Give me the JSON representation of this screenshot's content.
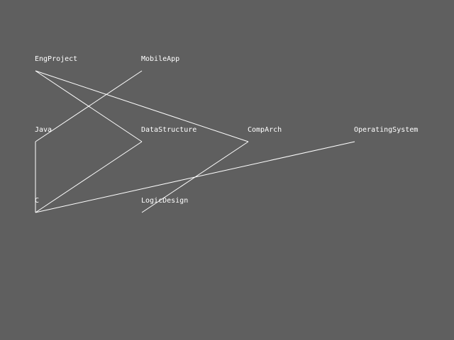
{
  "diagram": {
    "background": "#5f5f5f",
    "line_color": "#ffffff",
    "nodes": {
      "EngProject": {
        "label": "EngProject"
      },
      "MobileApp": {
        "label": "MobileApp"
      },
      "Java": {
        "label": "Java"
      },
      "DataStructure": {
        "label": "DataStructure"
      },
      "CompArch": {
        "label": "CompArch"
      },
      "OperatingSystem": {
        "label": "OperatingSystem"
      },
      "C": {
        "label": "C"
      },
      "LogicDesign": {
        "label": "LogicDesign"
      }
    },
    "edges": [
      {
        "from": "EngProject",
        "to": "DataStructure"
      },
      {
        "from": "EngProject",
        "to": "CompArch"
      },
      {
        "from": "MobileApp",
        "to": "Java"
      },
      {
        "from": "Java",
        "to": "C"
      },
      {
        "from": "DataStructure",
        "to": "C"
      },
      {
        "from": "CompArch",
        "to": "LogicDesign"
      },
      {
        "from": "OperatingSystem",
        "to": "C"
      }
    ]
  }
}
